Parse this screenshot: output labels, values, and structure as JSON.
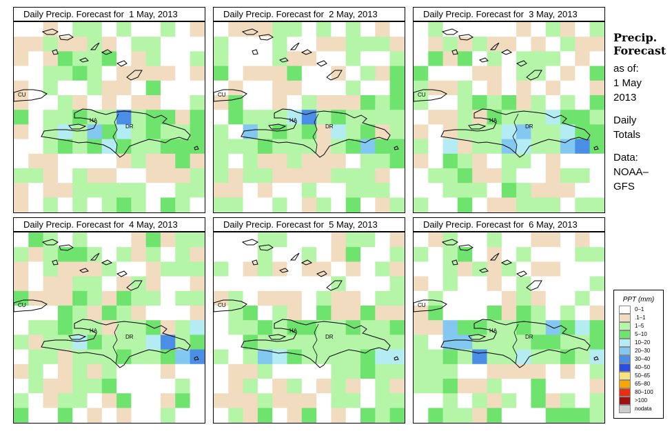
{
  "panels": [
    {
      "title": "Daily Precip. Forecast for  1 May, 2013",
      "seed": 11
    },
    {
      "title": "Daily Precip. Forecast for  2 May, 2013",
      "seed": 23
    },
    {
      "title": "Daily Precip. Forecast for  3 May, 2013",
      "seed": 37
    },
    {
      "title": "Daily Precip. Forecast for  4 May, 2013",
      "seed": 41
    },
    {
      "title": "Daily Precip. Forecast for  5 May, 2013",
      "seed": 53
    },
    {
      "title": "Daily Precip. Forecast for  6 May, 2013",
      "seed": 67
    }
  ],
  "map_labels": {
    "cuba": "CU",
    "haiti": "HA",
    "dominican_republic": "DR"
  },
  "side": {
    "title_line1": "Precip.",
    "title_line2": "Forecast",
    "asof_label": "as of:",
    "date_line1": "1 May",
    "date_line2": "2013",
    "totals_line1": "Daily",
    "totals_line2": "Totals",
    "data_line1": "Data:",
    "data_line2": "NOAA–",
    "data_line3": "GFS"
  },
  "legend": {
    "title": "PPT (mm)",
    "items": [
      {
        "label": "0–1",
        "color": "#ffffff"
      },
      {
        "label": ".1–1",
        "color": "#f1dcc0"
      },
      {
        "label": "1–5",
        "color": "#b4f5a8"
      },
      {
        "label": "5–10",
        "color": "#6ee36e"
      },
      {
        "label": "10–20",
        "color": "#b4ecf4"
      },
      {
        "label": "20–30",
        "color": "#82c8f0"
      },
      {
        "label": "30–40",
        "color": "#4a8ee6"
      },
      {
        "label": "40–50",
        "color": "#2a4ee0"
      },
      {
        "label": "50–65",
        "color": "#f6e280"
      },
      {
        "label": "65–80",
        "color": "#f6a800"
      },
      {
        "label": "80–100",
        "color": "#e83010"
      },
      {
        "label": ">100",
        "color": "#a01010"
      },
      {
        "label": "nodata",
        "color": "#cccccc"
      }
    ]
  }
}
